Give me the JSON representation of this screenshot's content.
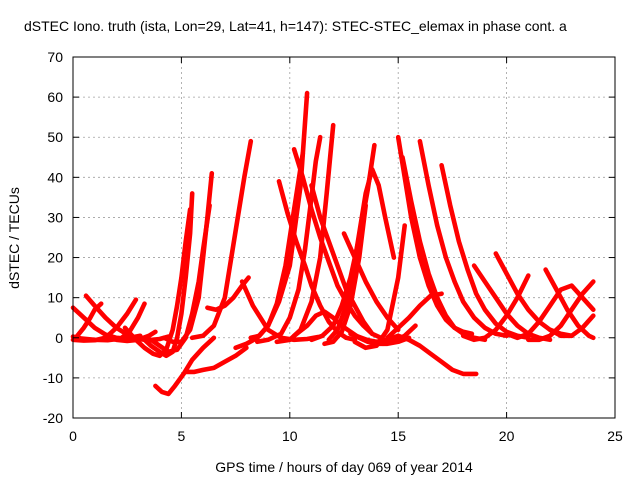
{
  "chart_data": {
    "type": "scatter",
    "title": "dSTEC Iono. truth (ista, Lon=29, Lat=41, h=147): STEC-STEC_elemax in phase cont. a",
    "xlabel": "GPS time / hours of day 069 of year 2014",
    "ylabel": "dSTEC  / TECUs",
    "xlim": [
      0,
      25
    ],
    "ylim": [
      -20,
      70
    ],
    "xticks": [
      0,
      5,
      10,
      15,
      20,
      25
    ],
    "yticks": [
      -20,
      -10,
      0,
      10,
      20,
      30,
      40,
      50,
      60,
      70
    ],
    "grid": true,
    "legend": "none",
    "color": "#ff0000",
    "series": [
      {
        "x": [
          0.0,
          0.3,
          0.6,
          1.0,
          1.5,
          2.0,
          2.4,
          2.8,
          3.1
        ],
        "y": [
          7.5,
          6.0,
          4.5,
          2.5,
          0.8,
          0.0,
          -0.2,
          0.2,
          0.5
        ]
      },
      {
        "x": [
          0.0,
          0.4,
          1.0,
          1.6,
          2.2,
          2.6,
          3.0,
          3.3
        ],
        "y": [
          0.3,
          -0.2,
          -0.5,
          -0.6,
          -0.2,
          1.5,
          5.0,
          8.5
        ]
      },
      {
        "x": [
          0.6,
          1.0,
          1.5,
          2.0,
          2.5,
          3.0,
          3.5,
          4.0,
          4.4
        ],
        "y": [
          10.5,
          8.0,
          5.0,
          2.5,
          0.8,
          -0.3,
          -0.6,
          -0.3,
          0.3
        ]
      },
      {
        "x": [
          0.2,
          0.5,
          0.8,
          1.0,
          1.3
        ],
        "y": [
          0.5,
          2.5,
          5.0,
          7.0,
          8.5
        ]
      },
      {
        "x": [
          0.0,
          0.5,
          1.0,
          1.5,
          2.0,
          2.5,
          2.9
        ],
        "y": [
          -0.5,
          -0.7,
          -0.6,
          0.0,
          2.5,
          6.0,
          9.5
        ]
      },
      {
        "x": [
          1.5,
          2.0,
          2.5,
          3.0,
          3.5,
          3.8
        ],
        "y": [
          0.0,
          -0.5,
          -0.8,
          -0.5,
          0.5,
          1.5
        ]
      },
      {
        "x": [
          2.4,
          2.9,
          3.3,
          3.7,
          4.0,
          4.3,
          4.6,
          4.8,
          5.0,
          5.2,
          5.4
        ],
        "y": [
          2.5,
          -0.5,
          -2.5,
          -4.0,
          -4.5,
          -3.0,
          2.0,
          8.0,
          15.0,
          24.0,
          32.0
        ]
      },
      {
        "x": [
          3.2,
          3.6,
          4.0,
          4.3,
          4.6,
          4.8,
          5.0,
          5.2,
          5.4,
          5.5
        ],
        "y": [
          0.0,
          -2.0,
          -3.5,
          -4.5,
          -3.5,
          0.0,
          6.0,
          15.0,
          26.0,
          36.0
        ]
      },
      {
        "x": [
          3.6,
          4.0,
          4.4,
          4.8,
          5.2,
          5.5,
          5.8,
          6.0,
          6.3
        ],
        "y": [
          -0.5,
          -2.0,
          -3.5,
          -3.0,
          0.0,
          6.0,
          14.0,
          22.0,
          33.0
        ]
      },
      {
        "x": [
          4.2,
          4.6,
          5.0,
          5.4,
          5.8,
          6.0,
          6.2,
          6.4
        ],
        "y": [
          0.0,
          -1.0,
          -1.0,
          2.0,
          10.0,
          20.0,
          30.0,
          41.0
        ]
      },
      {
        "x": [
          3.8,
          4.1,
          4.4,
          4.7,
          5.1,
          5.5,
          6.0,
          6.5
        ],
        "y": [
          -12.0,
          -13.5,
          -14.0,
          -12.0,
          -9.0,
          -5.5,
          -2.5,
          0.0
        ]
      },
      {
        "x": [
          5.2,
          5.6,
          6.0,
          6.5,
          7.0,
          7.5,
          8.0
        ],
        "y": [
          -8.5,
          -8.5,
          -8.0,
          -7.5,
          -6.0,
          -4.5,
          -2.5
        ]
      },
      {
        "x": [
          6.2,
          6.6,
          7.0,
          7.4,
          7.8,
          8.1
        ],
        "y": [
          7.5,
          7.0,
          8.0,
          10.0,
          13.0,
          15.0
        ]
      },
      {
        "x": [
          5.5,
          6.0,
          6.5,
          7.0,
          7.3,
          7.6,
          7.9,
          8.2
        ],
        "y": [
          0.0,
          0.5,
          3.0,
          10.0,
          20.0,
          30.0,
          40.0,
          49.0
        ]
      },
      {
        "x": [
          7.8,
          8.3,
          9.0,
          9.6,
          10.2,
          10.8,
          11.3
        ],
        "y": [
          14.0,
          8.0,
          2.0,
          0.0,
          -0.5,
          -0.3,
          0.2
        ]
      },
      {
        "x": [
          7.5,
          8.0,
          8.5,
          9.0,
          9.5,
          10.0,
          10.5,
          10.8
        ],
        "y": [
          -2.5,
          -1.5,
          0.0,
          3.0,
          9.0,
          18.0,
          38.0,
          61.0
        ]
      },
      {
        "x": [
          8.2,
          8.6,
          9.0,
          9.4,
          9.8,
          10.2,
          10.6
        ],
        "y": [
          0.0,
          0.5,
          3.0,
          8.5,
          18.0,
          32.0,
          46.0
        ]
      },
      {
        "x": [
          8.5,
          9.0,
          9.6,
          10.0,
          10.4,
          10.7,
          11.0,
          11.2,
          11.4
        ],
        "y": [
          -1.0,
          -0.5,
          1.0,
          5.0,
          12.0,
          22.0,
          35.0,
          44.0,
          50.0
        ]
      },
      {
        "x": [
          9.4,
          10.0,
          10.5,
          11.0,
          11.4,
          11.7,
          12.0
        ],
        "y": [
          -1.0,
          -0.5,
          2.0,
          9.0,
          20.0,
          36.0,
          53.0
        ]
      },
      {
        "x": [
          9.5,
          9.9,
          10.3,
          10.7,
          11.0,
          11.4,
          11.8,
          12.2,
          12.6,
          13.0
        ],
        "y": [
          39.0,
          31.0,
          24.0,
          18.0,
          13.0,
          8.0,
          4.0,
          1.5,
          0.0,
          -0.5
        ]
      },
      {
        "x": [
          10.2,
          10.6,
          11.0,
          11.4,
          11.8,
          12.2,
          12.6,
          13.0,
          13.4,
          13.8,
          14.2
        ],
        "y": [
          47.0,
          40.0,
          32.0,
          25.0,
          19.0,
          13.0,
          9.0,
          5.5,
          3.0,
          1.0,
          0.0
        ]
      },
      {
        "x": [
          11.0,
          11.4,
          11.8,
          12.2,
          12.6,
          13.0,
          13.4,
          13.8
        ],
        "y": [
          38.0,
          30.0,
          24.0,
          18.0,
          12.0,
          8.0,
          4.0,
          1.0
        ]
      },
      {
        "x": [
          10.2,
          10.8,
          11.2,
          11.6,
          12.0,
          12.4,
          12.8,
          13.2,
          13.6,
          14.0,
          14.5,
          15.0,
          15.5
        ],
        "y": [
          0.5,
          3.0,
          5.5,
          6.5,
          5.0,
          3.0,
          1.5,
          0.0,
          -1.0,
          -1.5,
          -1.5,
          -1.0,
          0.0
        ]
      },
      {
        "x": [
          11.0,
          11.5,
          12.0,
          12.4,
          12.8,
          13.2,
          13.6,
          13.9
        ],
        "y": [
          -0.5,
          0.5,
          3.0,
          8.0,
          15.0,
          25.0,
          37.0,
          48.0
        ]
      },
      {
        "x": [
          11.6,
          12.0,
          12.4,
          12.8,
          13.2,
          13.5
        ],
        "y": [
          -1.5,
          -1.0,
          1.5,
          8.0,
          20.0,
          33.0
        ]
      },
      {
        "x": [
          11.8,
          12.2,
          12.6,
          12.9,
          13.2,
          13.5,
          13.8,
          14.1,
          14.4,
          14.8
        ],
        "y": [
          -0.5,
          2.0,
          8.0,
          16.0,
          26.0,
          36.0,
          42.0,
          38.0,
          30.0,
          20.0
        ]
      },
      {
        "x": [
          12.5,
          13.0,
          13.5,
          14.0,
          14.5,
          15.0
        ],
        "y": [
          26.0,
          20.0,
          14.0,
          9.0,
          5.0,
          2.0
        ]
      },
      {
        "x": [
          12.8,
          13.3,
          13.8,
          14.3,
          14.8,
          15.3,
          15.8
        ],
        "y": [
          1.0,
          0.0,
          -1.0,
          -1.5,
          -1.0,
          0.5,
          3.0
        ]
      },
      {
        "x": [
          13.0,
          13.5,
          14.0,
          14.5,
          15.0,
          15.3
        ],
        "y": [
          -1.0,
          -2.5,
          -2.0,
          2.0,
          15.0,
          28.0
        ]
      },
      {
        "x": [
          13.5,
          14.0,
          14.5,
          15.0,
          15.5,
          16.0,
          16.5,
          17.0,
          17.5,
          18.0,
          18.3,
          18.6
        ],
        "y": [
          -0.5,
          -1.0,
          -0.5,
          0.5,
          -0.5,
          -2.0,
          -4.0,
          -6.0,
          -8.0,
          -9.0,
          -9.0,
          -9.0
        ]
      },
      {
        "x": [
          14.5,
          15.0,
          15.5,
          16.0,
          16.5,
          17.0
        ],
        "y": [
          0.0,
          2.5,
          5.0,
          8.0,
          10.5,
          11.0
        ]
      },
      {
        "x": [
          15.0,
          15.3,
          15.6,
          16.0,
          16.4,
          16.8,
          17.2,
          17.6,
          18.0,
          18.4
        ],
        "y": [
          50.0,
          40.0,
          30.0,
          20.0,
          13.0,
          8.0,
          4.5,
          2.5,
          1.5,
          1.0
        ]
      },
      {
        "x": [
          15.2,
          15.6,
          16.0,
          16.4,
          16.8,
          17.2,
          17.6,
          18.0,
          18.5,
          19.0
        ],
        "y": [
          45.0,
          34.0,
          24.0,
          16.0,
          10.0,
          5.5,
          2.5,
          1.0,
          0.0,
          -0.5
        ]
      },
      {
        "x": [
          16.0,
          16.4,
          16.8,
          17.2,
          17.6,
          18.0,
          18.5,
          19.0,
          19.5,
          20.0
        ],
        "y": [
          49.0,
          38.0,
          28.0,
          20.0,
          14.0,
          9.0,
          5.0,
          2.5,
          1.0,
          0.5
        ]
      },
      {
        "x": [
          17.0,
          17.4,
          17.8,
          18.2,
          18.6,
          19.0,
          19.5,
          20.0,
          20.5,
          21.0
        ],
        "y": [
          43.0,
          33.0,
          24.0,
          17.0,
          11.0,
          7.0,
          3.5,
          1.5,
          0.5,
          0.0
        ]
      },
      {
        "x": [
          18.5,
          19.0,
          19.5,
          20.0,
          20.5,
          21.0,
          21.5,
          22.0
        ],
        "y": [
          18.0,
          14.0,
          10.0,
          6.0,
          3.0,
          1.0,
          0.0,
          -0.5
        ]
      },
      {
        "x": [
          19.5,
          20.0,
          20.5,
          21.0,
          21.5,
          22.0,
          22.5,
          23.0
        ],
        "y": [
          21.0,
          16.0,
          11.0,
          7.0,
          4.0,
          2.0,
          1.0,
          0.5
        ]
      },
      {
        "x": [
          18.0,
          18.5,
          19.0,
          19.5,
          20.0,
          20.5,
          21.0
        ],
        "y": [
          0.5,
          -0.5,
          0.0,
          2.0,
          5.5,
          10.0,
          15.5
        ]
      },
      {
        "x": [
          20.0,
          20.5,
          21.0,
          21.5,
          22.0,
          22.5,
          23.0,
          23.5,
          24.0
        ],
        "y": [
          1.0,
          0.0,
          1.0,
          4.0,
          8.0,
          12.0,
          13.0,
          10.0,
          7.0
        ]
      },
      {
        "x": [
          21.0,
          21.5,
          22.0,
          22.5,
          23.0,
          23.5,
          24.0
        ],
        "y": [
          -0.5,
          -0.5,
          0.5,
          3.0,
          7.0,
          11.0,
          14.0
        ]
      },
      {
        "x": [
          21.8,
          22.3,
          22.8,
          23.3,
          23.8,
          24.0
        ],
        "y": [
          17.0,
          12.0,
          7.0,
          3.0,
          0.5,
          0.0
        ]
      },
      {
        "x": [
          22.0,
          22.5,
          23.0,
          23.5,
          24.0
        ],
        "y": [
          2.0,
          0.5,
          0.5,
          2.5,
          5.5
        ]
      }
    ]
  }
}
